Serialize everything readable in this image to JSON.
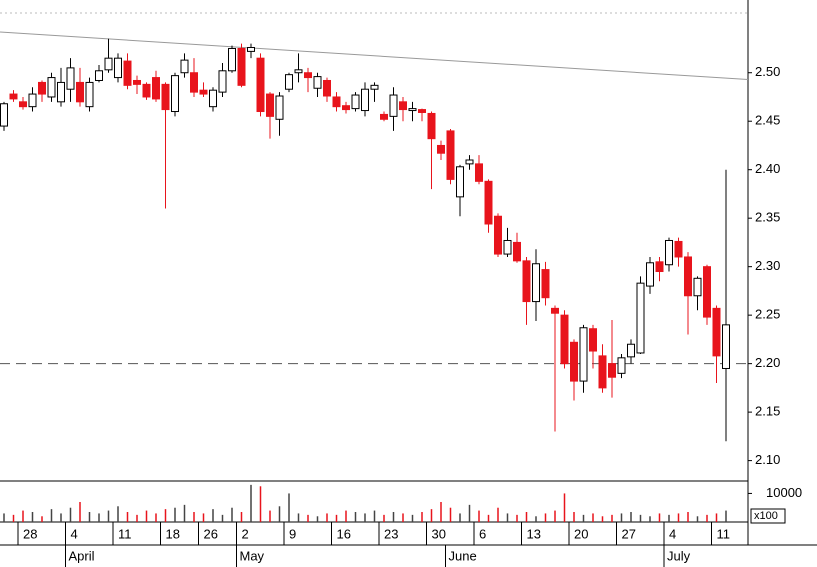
{
  "chart_data": {
    "type": "candlestick",
    "categories": [
      null,
      null,
      "28",
      null,
      null,
      null,
      null,
      "4",
      null,
      null,
      null,
      null,
      "11",
      null,
      null,
      null,
      null,
      "18",
      null,
      null,
      null,
      "26",
      null,
      null,
      null,
      "2",
      null,
      null,
      null,
      null,
      "9",
      null,
      null,
      null,
      null,
      "16",
      null,
      null,
      null,
      null,
      "23",
      null,
      null,
      null,
      null,
      "30",
      null,
      null,
      null,
      null,
      "6",
      null,
      null,
      null,
      null,
      "13",
      null,
      null,
      null,
      null,
      "20",
      null,
      null,
      null,
      null,
      "27",
      null,
      null,
      null,
      null,
      "4",
      null,
      null,
      null,
      null,
      "11",
      null
    ],
    "months": [
      null,
      null,
      null,
      null,
      null,
      null,
      null,
      "April",
      null,
      null,
      null,
      null,
      null,
      null,
      null,
      null,
      null,
      null,
      null,
      null,
      null,
      null,
      null,
      null,
      null,
      "May",
      null,
      null,
      null,
      null,
      null,
      null,
      null,
      null,
      null,
      null,
      null,
      null,
      null,
      null,
      null,
      null,
      null,
      null,
      null,
      null,
      null,
      "June",
      null,
      null,
      null,
      null,
      null,
      null,
      null,
      null,
      null,
      null,
      null,
      null,
      null,
      null,
      null,
      null,
      null,
      null,
      null,
      null,
      null,
      null,
      "July",
      null,
      null,
      null,
      null,
      null,
      null
    ],
    "open": [
      2.445,
      2.478,
      2.47,
      2.465,
      2.49,
      2.475,
      2.47,
      2.483,
      2.49,
      2.465,
      2.492,
      2.503,
      2.495,
      2.512,
      2.492,
      2.488,
      2.495,
      2.488,
      2.46,
      2.5,
      2.5,
      2.482,
      2.465,
      2.48,
      2.502,
      2.525,
      2.522,
      2.515,
      2.478,
      2.452,
      2.483,
      2.5,
      2.5,
      2.484,
      2.492,
      2.475,
      2.466,
      2.463,
      2.461,
      2.483,
      2.457,
      2.455,
      2.47,
      2.461,
      2.462,
      2.458,
      2.425,
      2.44,
      2.372,
      2.406,
      2.406,
      2.388,
      2.352,
      2.313,
      2.325,
      2.306,
      2.264,
      2.297,
      2.257,
      2.25,
      2.222,
      2.182,
      2.236,
      2.208,
      2.2,
      2.19,
      2.207,
      2.211,
      2.28,
      2.305,
      2.302,
      2.326,
      2.31,
      2.27,
      2.3,
      2.257,
      2.195
    ],
    "high": [
      2.47,
      2.482,
      2.475,
      2.485,
      2.492,
      2.5,
      2.505,
      2.515,
      2.505,
      2.495,
      2.508,
      2.535,
      2.52,
      2.52,
      2.497,
      2.49,
      2.502,
      2.49,
      2.5,
      2.52,
      2.515,
      2.49,
      2.485,
      2.51,
      2.528,
      2.53,
      2.53,
      2.52,
      2.48,
      2.48,
      2.5,
      2.52,
      2.505,
      2.5,
      2.495,
      2.48,
      2.47,
      2.48,
      2.49,
      2.49,
      2.46,
      2.485,
      2.475,
      2.47,
      2.463,
      2.46,
      2.43,
      2.442,
      2.405,
      2.415,
      2.415,
      2.39,
      2.355,
      2.34,
      2.335,
      2.31,
      2.318,
      2.305,
      2.26,
      2.255,
      2.225,
      2.24,
      2.24,
      2.22,
      2.245,
      2.21,
      2.225,
      2.29,
      2.31,
      2.31,
      2.33,
      2.33,
      2.315,
      2.29,
      2.302,
      2.26,
      2.4
    ],
    "low": [
      2.44,
      2.47,
      2.462,
      2.46,
      2.47,
      2.47,
      2.465,
      2.47,
      2.465,
      2.46,
      2.49,
      2.5,
      2.49,
      2.483,
      2.478,
      2.472,
      2.47,
      2.36,
      2.455,
      2.495,
      2.475,
      2.475,
      2.46,
      2.475,
      2.5,
      2.485,
      2.515,
      2.455,
      2.432,
      2.435,
      2.48,
      2.49,
      2.48,
      2.475,
      2.47,
      2.46,
      2.458,
      2.46,
      2.455,
      2.47,
      2.45,
      2.44,
      2.45,
      2.45,
      2.45,
      2.38,
      2.41,
      2.385,
      2.352,
      2.4,
      2.385,
      2.335,
      2.31,
      2.31,
      2.304,
      2.24,
      2.244,
      2.26,
      2.13,
      2.195,
      2.162,
      2.17,
      2.195,
      2.17,
      2.165,
      2.185,
      2.2,
      2.21,
      2.272,
      2.285,
      2.295,
      2.3,
      2.23,
      2.255,
      2.24,
      2.18,
      2.12
    ],
    "close": [
      2.468,
      2.473,
      2.465,
      2.478,
      2.478,
      2.495,
      2.49,
      2.505,
      2.47,
      2.49,
      2.502,
      2.515,
      2.515,
      2.487,
      2.488,
      2.475,
      2.473,
      2.462,
      2.497,
      2.513,
      2.48,
      2.478,
      2.482,
      2.502,
      2.525,
      2.487,
      2.526,
      2.46,
      2.455,
      2.476,
      2.498,
      2.503,
      2.495,
      2.496,
      2.476,
      2.465,
      2.462,
      2.477,
      2.483,
      2.487,
      2.452,
      2.477,
      2.462,
      2.463,
      2.459,
      2.432,
      2.417,
      2.39,
      2.403,
      2.41,
      2.388,
      2.344,
      2.313,
      2.327,
      2.306,
      2.264,
      2.303,
      2.268,
      2.252,
      2.2,
      2.182,
      2.237,
      2.213,
      2.175,
      2.186,
      2.206,
      2.22,
      2.283,
      2.304,
      2.295,
      2.327,
      2.31,
      2.27,
      2.288,
      2.248,
      2.208,
      2.24
    ],
    "volume": [
      3000,
      2500,
      4000,
      3500,
      2000,
      4500,
      3000,
      5000,
      7000,
      3500,
      3000,
      4000,
      5500,
      3500,
      2500,
      4000,
      3000,
      4500,
      5000,
      6000,
      3500,
      3000,
      4500,
      2500,
      5000,
      3500,
      13000,
      12500,
      4000,
      5500,
      10000,
      3000,
      2500,
      2000,
      3000,
      2500,
      4000,
      3500,
      3000,
      4000,
      2500,
      3500,
      3000,
      2500,
      3500,
      4500,
      7000,
      5000,
      3000,
      6000,
      4000,
      2500,
      5000,
      3000,
      2500,
      3500,
      2000,
      3000,
      4000,
      10000,
      3500,
      2500,
      3000,
      2000,
      2500,
      3000,
      3500,
      2500,
      2000,
      3000,
      2500,
      3000,
      3500,
      2000,
      2500,
      3000,
      4000
    ],
    "up_color": "#ffffff",
    "down_color": "#e8141c",
    "ylim": [
      2.08,
      2.575
    ],
    "yticks": [
      {
        "value": 2.1,
        "label": "2.10"
      },
      {
        "value": 2.15,
        "label": "2.15"
      },
      {
        "value": 2.2,
        "label": "2.20"
      },
      {
        "value": 2.25,
        "label": "2.25"
      },
      {
        "value": 2.3,
        "label": "2.30"
      },
      {
        "value": 2.35,
        "label": "2.35"
      },
      {
        "value": 2.4,
        "label": "2.40"
      },
      {
        "value": 2.45,
        "label": "2.45"
      },
      {
        "value": 2.5,
        "label": "2.50"
      }
    ],
    "reference_line": 2.2,
    "trendline": [
      2.542,
      2.493
    ],
    "volume_ylim": [
      0,
      14000
    ],
    "volume_yticks": [
      10000
    ],
    "volume_unit_label": "x100"
  }
}
